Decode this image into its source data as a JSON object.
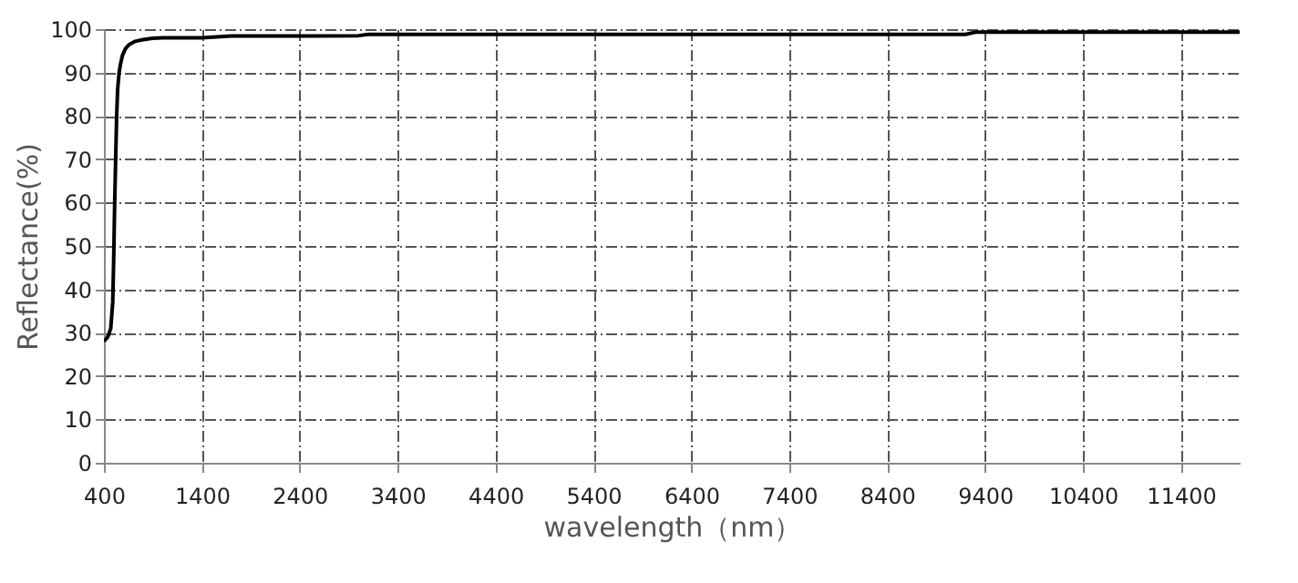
{
  "chart_data": {
    "type": "line",
    "xlabel": "wavelength（nm）",
    "ylabel": "Reflectance(%)",
    "xlim": [
      400,
      12000
    ],
    "xticks": [
      400,
      1400,
      2400,
      3400,
      4400,
      5400,
      6400,
      7400,
      8400,
      9400,
      10400,
      11400
    ],
    "ylim": [
      0,
      100
    ],
    "yticks": [
      0,
      10,
      20,
      30,
      40,
      50,
      60,
      70,
      80,
      90,
      100
    ],
    "grid": true,
    "marker": "none",
    "line_style": "solid",
    "series": [
      {
        "color": "#000000",
        "x": [
          400,
          440,
          470,
          490,
          500,
          510,
          520,
          530,
          540,
          555,
          570,
          590,
          620,
          660,
          720,
          800,
          900,
          1000,
          1400,
          1700,
          2500,
          3000,
          3100,
          5000,
          7000,
          9200,
          9300,
          10500,
          12000
        ],
        "values": [
          28,
          29,
          31,
          37,
          47,
          60,
          70,
          80,
          86,
          90,
          92,
          94,
          95.5,
          96.5,
          97.2,
          97.6,
          97.9,
          98,
          98,
          98.4,
          98.4,
          98.5,
          98.8,
          98.8,
          98.8,
          98.8,
          99.3,
          99.3,
          99.3
        ]
      }
    ]
  }
}
